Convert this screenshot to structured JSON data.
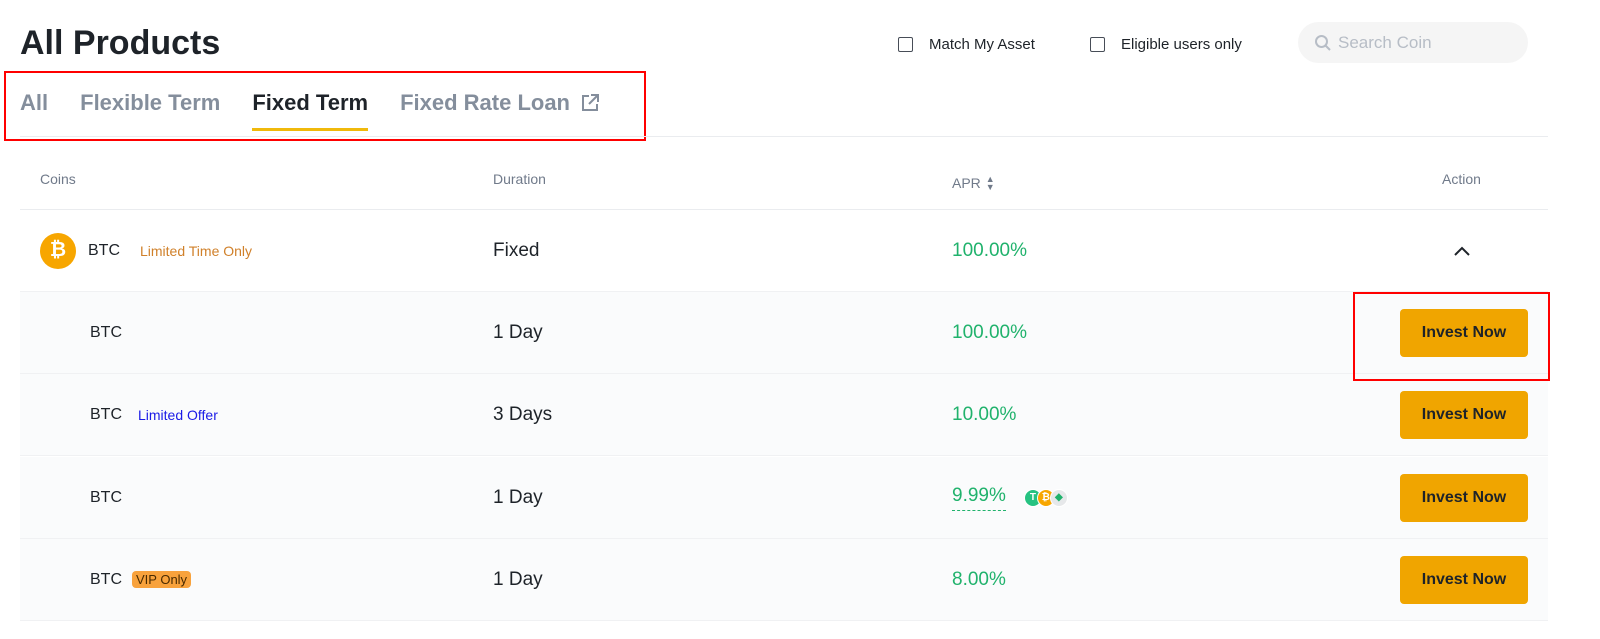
{
  "header": {
    "title": "All Products",
    "filters": [
      {
        "label": "Match My Asset",
        "checked": false
      },
      {
        "label": "Eligible users only",
        "checked": false
      }
    ],
    "search_placeholder": "Search Coin"
  },
  "tabs": [
    {
      "label": "All",
      "active": false
    },
    {
      "label": "Flexible Term",
      "active": false
    },
    {
      "label": "Fixed Term",
      "active": true
    },
    {
      "label": "Fixed Rate Loan",
      "active": false,
      "icon": "external-link-icon"
    }
  ],
  "table": {
    "columns": [
      "Coins",
      "Duration",
      "APR",
      "Action"
    ],
    "group": {
      "coin": "BTC",
      "tag": "Limited Time Only",
      "duration": "Fixed",
      "apr": "100.00%",
      "expanded": true
    },
    "rows": [
      {
        "coin": "BTC",
        "tag": "",
        "duration": "1 Day",
        "apr": "100.00%",
        "action": "Invest Now"
      },
      {
        "coin": "BTC",
        "tag": "Limited Offer",
        "duration": "3 Days",
        "apr": "10.00%",
        "action": "Invest Now"
      },
      {
        "coin": "BTC",
        "tag": "",
        "duration": "1 Day",
        "apr": "9.99%",
        "action": "Invest Now",
        "reward_icons": [
          "usdt-icon",
          "btc-icon",
          "eth-icon"
        ]
      },
      {
        "coin": "BTC",
        "tag": "VIP Only",
        "duration": "1 Day",
        "apr": "8.00%",
        "action": "Invest Now"
      }
    ]
  },
  "colors": {
    "accent": "#f0b90b",
    "button": "#f0a500",
    "apr": "#20b26c",
    "limited_time": "#d0802a",
    "limited_offer": "#1a1ae6",
    "annotation": "#ff0000"
  }
}
